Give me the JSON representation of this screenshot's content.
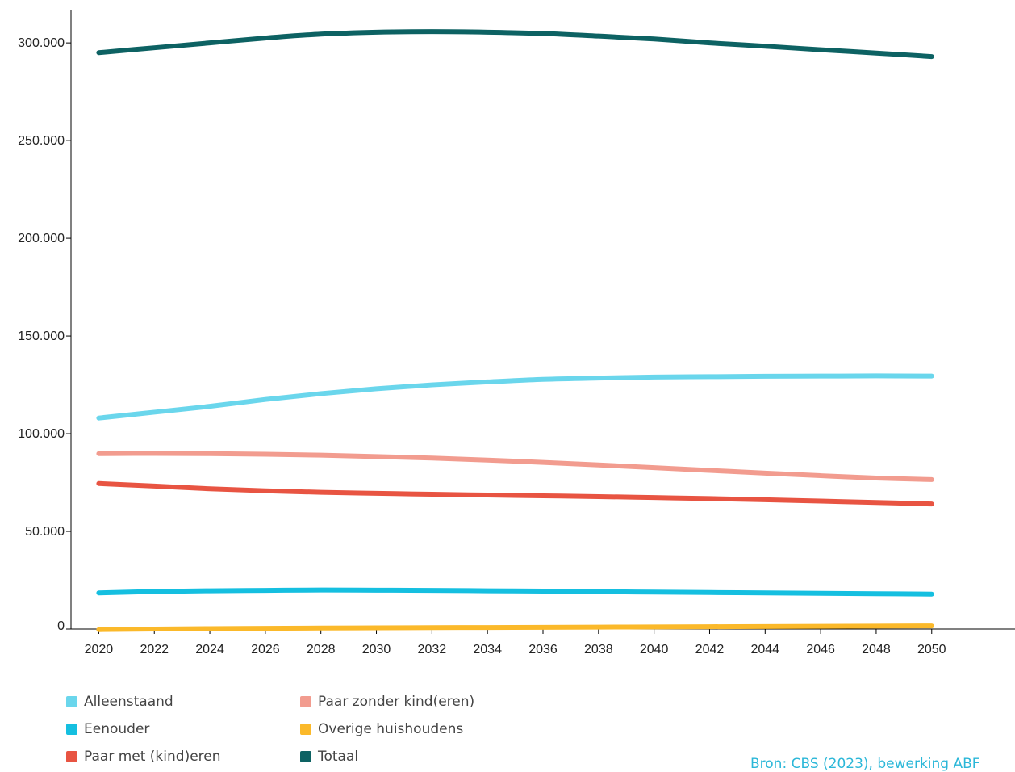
{
  "chart_data": {
    "type": "line",
    "title": "",
    "xlabel": "",
    "ylabel": "",
    "x": [
      2020,
      2022,
      2024,
      2026,
      2028,
      2030,
      2032,
      2034,
      2036,
      2038,
      2040,
      2042,
      2044,
      2046,
      2048,
      2050
    ],
    "xticks": [
      "2020",
      "2022",
      "2024",
      "2026",
      "2028",
      "2030",
      "2032",
      "2034",
      "2036",
      "2038",
      "2040",
      "2042",
      "2044",
      "2046",
      "2048",
      "2050"
    ],
    "yticks": [
      {
        "value": 0,
        "label": "0"
      },
      {
        "value": 50000,
        "label": "50.000"
      },
      {
        "value": 100000,
        "label": "100.000"
      },
      {
        "value": 150000,
        "label": "150.000"
      },
      {
        "value": 200000,
        "label": "200.000"
      },
      {
        "value": 250000,
        "label": "250.000"
      },
      {
        "value": 300000,
        "label": "300.000"
      }
    ],
    "ylim": [
      0,
      317000
    ],
    "xlim": [
      2019,
      2053
    ],
    "grid": false,
    "legend_position": "bottom-left",
    "series": [
      {
        "name": "Alleenstaand",
        "color": "#6ad6ec",
        "values": [
          108000,
          111000,
          114000,
          117500,
          120500,
          123000,
          125000,
          126500,
          127800,
          128500,
          129000,
          129200,
          129400,
          129500,
          129600,
          129500
        ]
      },
      {
        "name": "Eenouder",
        "color": "#15bfe0",
        "values": [
          18500,
          19200,
          19600,
          19800,
          20000,
          19900,
          19800,
          19600,
          19400,
          19100,
          18900,
          18700,
          18500,
          18300,
          18100,
          17900
        ]
      },
      {
        "name": "Paar met (kind)eren",
        "color": "#e85442",
        "values": [
          74500,
          73200,
          71800,
          70800,
          70000,
          69500,
          69000,
          68600,
          68200,
          67800,
          67300,
          66800,
          66200,
          65500,
          64800,
          64000
        ]
      },
      {
        "name": "Paar zonder kind(eren)",
        "color": "#f29c8f",
        "values": [
          89800,
          89900,
          89800,
          89500,
          89000,
          88300,
          87500,
          86500,
          85300,
          84000,
          82600,
          81200,
          79800,
          78500,
          77300,
          76500
        ]
      },
      {
        "name": "Overige huishoudens",
        "color": "#fbb92a",
        "values": [
          -300,
          0,
          200,
          350,
          500,
          600,
          700,
          800,
          900,
          1000,
          1100,
          1200,
          1300,
          1400,
          1500,
          1600
        ]
      },
      {
        "name": "Totaal",
        "color": "#0d6263",
        "values": [
          295000,
          297500,
          300000,
          302500,
          304500,
          305500,
          305800,
          305500,
          304800,
          303500,
          302000,
          300000,
          298300,
          296500,
          294800,
          293000
        ]
      }
    ]
  },
  "legend_columns": [
    [
      "Alleenstaand",
      "Eenouder",
      "Paar met (kind)eren"
    ],
    [
      "Paar zonder kind(eren)",
      "Overige huishoudens",
      "Totaal"
    ]
  ],
  "source_text": "Bron: CBS (2023), bewerking ABF"
}
